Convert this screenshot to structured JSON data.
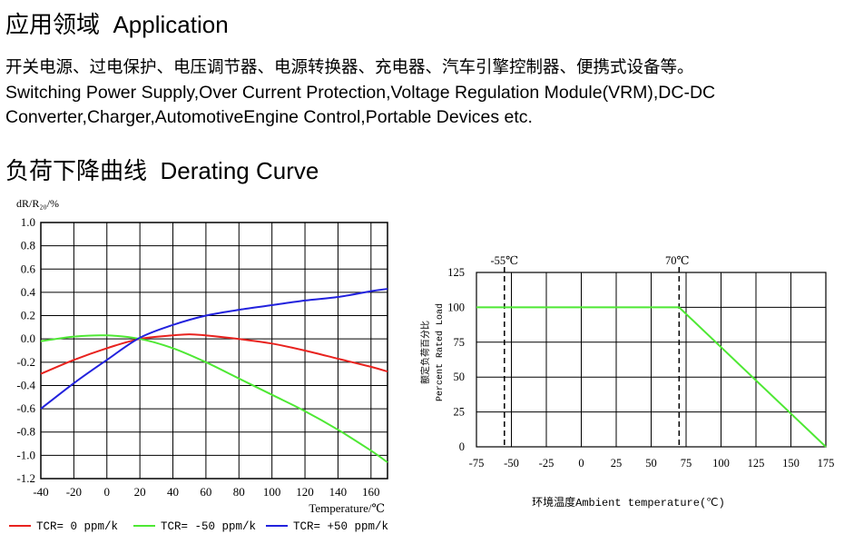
{
  "application": {
    "title_cn": "应用领域",
    "title_en": "Application",
    "text_cn": "开关电源、过电保护、电压调节器、电源转换器、充电器、汽车引擎控制器、便携式设备等。",
    "text_en_line1": "Switching Power Supply,Over Current Protection,Voltage Regulation Module(VRM),DC-DC",
    "text_en_line2": "Converter,Charger,AutomotiveEngine Control,Portable Devices etc."
  },
  "derating": {
    "title_cn": "负荷下降曲线",
    "title_en": "Derating Curve"
  },
  "colors": {
    "red": "#e8221e",
    "green": "#4ee834",
    "blue": "#2222dd",
    "grid": "#000000"
  },
  "chart_data": [
    {
      "type": "line",
      "ylabel": "dR/R₂₀/%",
      "xlabel": "Temperature/℃",
      "xlim": [
        -40,
        170
      ],
      "ylim": [
        -1.2,
        1.0
      ],
      "x_ticks": [
        -40,
        -20,
        0,
        20,
        40,
        60,
        80,
        100,
        120,
        140,
        160
      ],
      "x_tick_labels": [
        "-40",
        "-20",
        "0",
        "20",
        "40",
        "60",
        "80",
        "100",
        "120",
        "140",
        "160"
      ],
      "y_ticks": [
        1.0,
        0.8,
        0.6,
        0.4,
        0.2,
        0.0,
        -0.2,
        -0.4,
        -0.6,
        -0.8,
        -1.0,
        -1.2
      ],
      "y_tick_labels": [
        "1.0",
        "0.8",
        "0.6",
        "0.4",
        "0.2",
        "0.0",
        "-0.2",
        "-0.4",
        "-0.6",
        "-0.8",
        "-1.0",
        "-1.2"
      ],
      "grid": true,
      "legend_position": "bottom",
      "series": [
        {
          "name": "TCR= 0 ppm/k",
          "color": "#e8221e",
          "x": [
            -40,
            -20,
            0,
            20,
            40,
            50,
            60,
            80,
            100,
            120,
            140,
            160,
            170
          ],
          "y": [
            -0.3,
            -0.18,
            -0.08,
            0.0,
            0.03,
            0.04,
            0.03,
            0.0,
            -0.04,
            -0.1,
            -0.17,
            -0.24,
            -0.28
          ]
        },
        {
          "name": "TCR= -50 ppm/k",
          "color": "#4ee834",
          "x": [
            -40,
            -20,
            0,
            20,
            40,
            60,
            80,
            100,
            120,
            140,
            160,
            170
          ],
          "y": [
            -0.02,
            0.02,
            0.03,
            0.0,
            -0.08,
            -0.2,
            -0.34,
            -0.48,
            -0.62,
            -0.78,
            -0.96,
            -1.06
          ]
        },
        {
          "name": "TCR= +50 ppm/k",
          "color": "#2222dd",
          "x": [
            -40,
            -20,
            0,
            20,
            40,
            60,
            80,
            100,
            120,
            140,
            160,
            170
          ],
          "y": [
            -0.6,
            -0.38,
            -0.18,
            0.01,
            0.12,
            0.2,
            0.25,
            0.29,
            0.33,
            0.36,
            0.41,
            0.43
          ]
        }
      ]
    },
    {
      "type": "line",
      "ylabel_cn": "额定负荷百分比",
      "ylabel_en": "Percent Rated Load",
      "xlabel": "环境温度Ambient temperature(℃)",
      "xlim": [
        -75,
        175
      ],
      "ylim": [
        0,
        125
      ],
      "x_ticks": [
        -75,
        -50,
        -25,
        0,
        25,
        50,
        75,
        100,
        125,
        150,
        175
      ],
      "x_tick_labels": [
        "-75",
        "-50",
        "-25",
        "0",
        "25",
        "50",
        "75",
        "100",
        "125",
        "150",
        "175"
      ],
      "y_ticks": [
        0,
        25,
        50,
        75,
        100,
        125
      ],
      "y_tick_labels": [
        "0",
        "25",
        "50",
        "75",
        "100",
        "125"
      ],
      "grid": true,
      "markers": [
        {
          "x": -55,
          "label": "-55℃"
        },
        {
          "x": 70,
          "label": "70℃"
        }
      ],
      "series": [
        {
          "color": "#4ee834",
          "x": [
            -75,
            70,
            175
          ],
          "y": [
            100,
            100,
            0
          ]
        }
      ]
    }
  ]
}
